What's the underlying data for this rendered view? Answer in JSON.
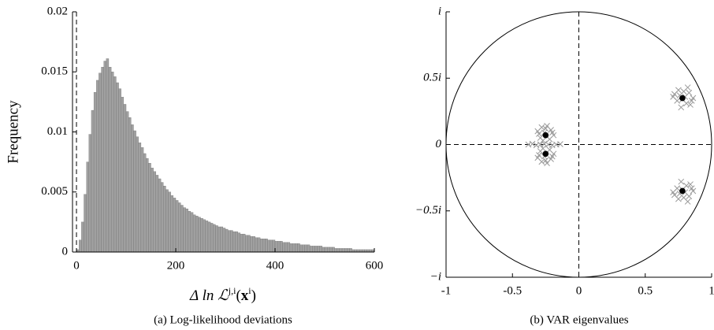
{
  "chart_data": [
    {
      "type": "histogram",
      "ylabel": "Frequency",
      "xlabel": [
        "Δ ln ℒ",
        "j,i",
        "(",
        "x",
        "i",
        ")"
      ],
      "caption": "(a) Log-likelihood deviations",
      "color": "#a0a0a0",
      "vline_x": 0,
      "xlim": [
        -8,
        600
      ],
      "xticks": [
        0,
        200,
        400,
        600
      ],
      "ylim": [
        0,
        0.02
      ],
      "yticks": [
        0,
        0.005,
        0.01,
        0.015,
        0.02
      ],
      "bins": [
        0,
        5,
        10,
        15,
        20,
        25,
        30,
        35,
        40,
        45,
        50,
        55,
        60,
        65,
        70,
        75,
        80,
        85,
        90,
        95,
        100,
        105,
        110,
        115,
        120,
        125,
        130,
        135,
        140,
        145,
        150,
        155,
        160,
        165,
        170,
        175,
        180,
        185,
        190,
        195,
        200,
        205,
        210,
        215,
        220,
        225,
        230,
        235,
        240,
        245,
        250,
        255,
        260,
        265,
        270,
        275,
        280,
        285,
        290,
        295,
        300,
        305,
        310,
        315,
        320,
        325,
        330,
        335,
        340,
        345,
        350,
        355,
        360,
        365,
        370,
        375,
        380,
        385,
        390,
        395,
        400,
        405,
        410,
        415,
        420,
        425,
        430,
        435,
        440,
        445,
        450,
        455,
        460,
        465,
        470,
        475,
        480,
        485,
        490,
        495,
        500,
        505,
        510,
        515,
        520,
        525,
        530,
        535,
        540,
        545,
        550,
        555,
        560,
        565,
        570,
        575,
        580,
        585,
        590,
        595,
        600
      ],
      "values": [
        0.0002,
        0.001,
        0.0025,
        0.0048,
        0.0075,
        0.0098,
        0.0118,
        0.0133,
        0.0143,
        0.0149,
        0.0154,
        0.0159,
        0.0161,
        0.0154,
        0.015,
        0.0146,
        0.0141,
        0.0136,
        0.0129,
        0.0123,
        0.0117,
        0.0112,
        0.0106,
        0.0101,
        0.0096,
        0.0091,
        0.0087,
        0.0082,
        0.0078,
        0.0074,
        0.007,
        0.0067,
        0.0064,
        0.0061,
        0.0058,
        0.0055,
        0.0052,
        0.005,
        0.0047,
        0.0045,
        0.0043,
        0.0041,
        0.0039,
        0.0037,
        0.0036,
        0.0034,
        0.0033,
        0.0031,
        0.003,
        0.0029,
        0.0028,
        0.0027,
        0.0026,
        0.0025,
        0.0024,
        0.0023,
        0.0022,
        0.0021,
        0.0021,
        0.002,
        0.0019,
        0.0018,
        0.0018,
        0.0017,
        0.0017,
        0.0016,
        0.0015,
        0.0015,
        0.0014,
        0.0014,
        0.0013,
        0.0013,
        0.0012,
        0.0012,
        0.0011,
        0.0011,
        0.0011,
        0.001,
        0.001,
        0.001,
        0.0009,
        0.0009,
        0.0009,
        0.0008,
        0.0008,
        0.0008,
        0.0007,
        0.0007,
        0.0007,
        0.0007,
        0.0006,
        0.0006,
        0.0006,
        0.0006,
        0.0005,
        0.0005,
        0.0005,
        0.0005,
        0.0005,
        0.0004,
        0.0004,
        0.0004,
        0.0004,
        0.0004,
        0.0003,
        0.0003,
        0.0003,
        0.0003,
        0.0003,
        0.0003,
        0.0003,
        0.0002,
        0.0002,
        0.0002,
        0.0002,
        0.0002,
        0.0002,
        0.0002,
        0.0002,
        0.0002
      ]
    },
    {
      "type": "scatter",
      "caption": "(b) VAR eigenvalues",
      "xlim": [
        -1,
        1
      ],
      "xticks": [
        -1,
        -0.5,
        0,
        0.5,
        1
      ],
      "ylim": [
        -1,
        1
      ],
      "yticks": [
        {
          "value": -1,
          "label": "−i"
        },
        {
          "value": -0.5,
          "label": "−0.5i"
        },
        0,
        {
          "value": 0.5,
          "label": "0.5i"
        },
        {
          "value": 1,
          "label": "i"
        }
      ],
      "series": [
        {
          "marker": "x",
          "color": "#999999",
          "x": [
            0.72,
            0.75,
            0.79,
            0.83,
            0.86,
            0.74,
            0.81,
            0.77,
            0.84,
            0.71,
            0.8,
            0.76,
            0.85,
            0.78,
            0.82,
            0.72,
            0.75,
            0.79,
            0.83,
            0.86,
            0.74,
            0.81,
            0.77,
            0.84,
            0.71,
            0.8,
            0.76,
            0.85,
            0.78,
            0.82,
            -0.31,
            -0.28,
            -0.24,
            -0.21,
            -0.19,
            -0.29,
            -0.26,
            -0.22,
            -0.3,
            -0.2,
            -0.25,
            -0.27,
            -0.31,
            -0.28,
            -0.24,
            -0.21,
            -0.19,
            -0.29,
            -0.26,
            -0.22,
            -0.3,
            -0.2,
            -0.25,
            -0.27,
            -0.38,
            -0.35,
            -0.32,
            -0.29,
            -0.26,
            -0.23,
            -0.2,
            -0.17,
            -0.14
          ],
          "y": [
            0.38,
            0.41,
            0.4,
            0.39,
            0.35,
            0.33,
            0.31,
            0.28,
            0.3,
            0.36,
            0.36,
            0.37,
            0.33,
            0.34,
            0.43,
            -0.38,
            -0.41,
            -0.4,
            -0.39,
            -0.35,
            -0.33,
            -0.31,
            -0.28,
            -0.3,
            -0.36,
            -0.36,
            -0.37,
            -0.33,
            -0.34,
            -0.43,
            0.1,
            0.13,
            0.14,
            0.11,
            0.07,
            0.05,
            0.09,
            0.04,
            0.08,
            0.09,
            0.12,
            0.03,
            -0.1,
            -0.13,
            -0.14,
            -0.11,
            -0.07,
            -0.05,
            -0.09,
            -0.04,
            -0.08,
            -0.09,
            -0.12,
            -0.03,
            0,
            0.005,
            -0.005,
            0,
            0.005,
            0,
            -0.005,
            0,
            0.003
          ]
        },
        {
          "marker": "dot",
          "color": "#000000",
          "x": [
            -0.25,
            -0.25,
            0.78,
            0.78
          ],
          "y": [
            0.07,
            -0.07,
            0.35,
            -0.35
          ]
        }
      ]
    }
  ]
}
